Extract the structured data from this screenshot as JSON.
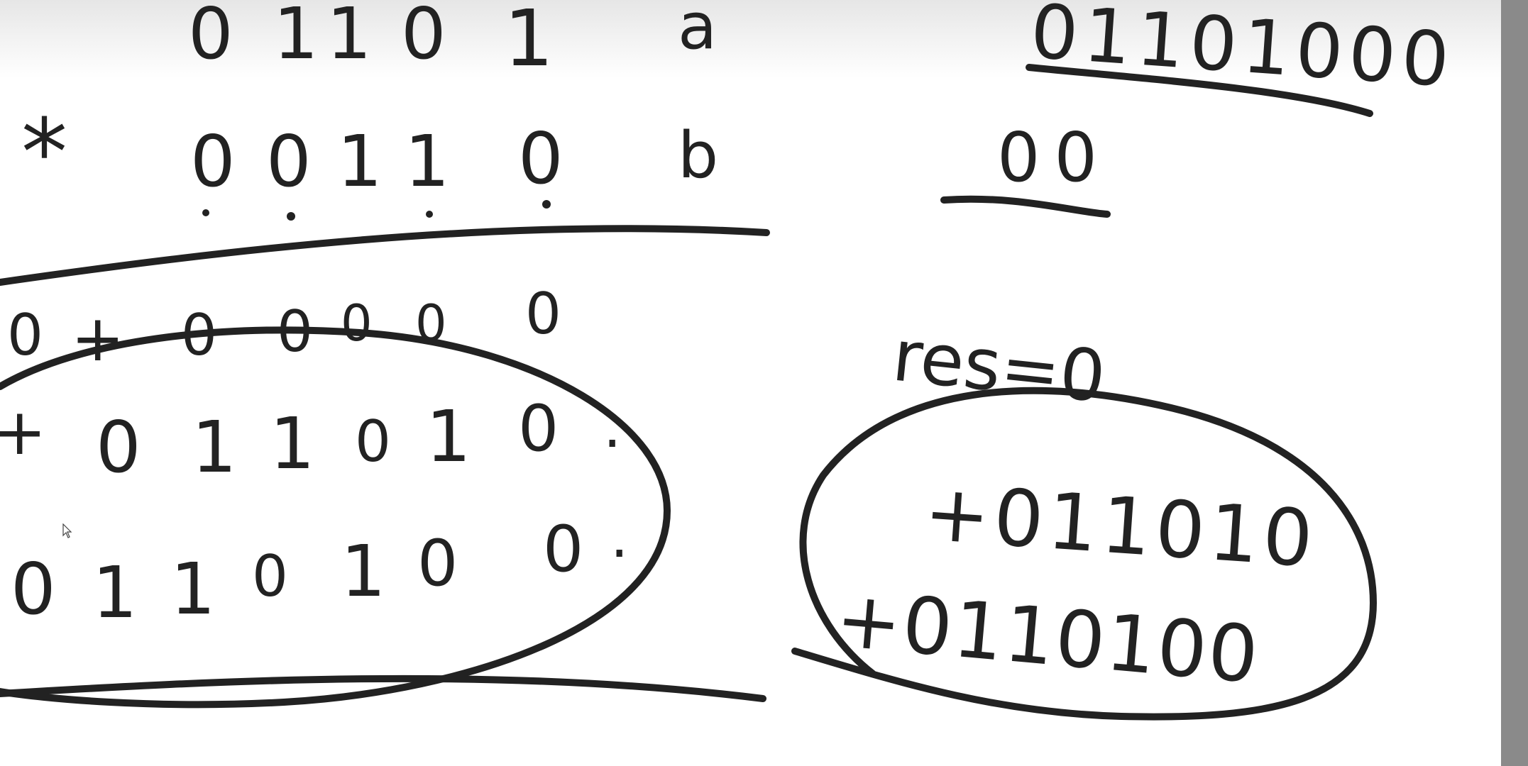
{
  "canvas": {
    "ink_color": "#222222",
    "background": "#ffffff",
    "scrollbar_color": "#8a8a8a"
  },
  "left_work": {
    "row_a": {
      "digits": [
        "0",
        "1",
        "1",
        "0",
        "1"
      ],
      "label": "a"
    },
    "row_b": {
      "operator": "*",
      "digits": [
        "0",
        "0",
        "1",
        "1",
        "0"
      ],
      "label": "b"
    },
    "partial_1": {
      "digits": [
        "0",
        "+",
        "0",
        "0",
        "0",
        "0",
        "0"
      ]
    },
    "partial_2": {
      "digits": [
        "+",
        "0",
        "1",
        "1",
        "0",
        "1",
        "0",
        "."
      ]
    },
    "result": {
      "digits": [
        "0",
        "1",
        "1",
        "0",
        "1",
        "0",
        "0",
        "."
      ]
    }
  },
  "right_work": {
    "shifted_a": "01101000",
    "shifted_b": "00",
    "res_label": "res=0",
    "sum_line_1": "+011010",
    "sum_line_2": "+0110100"
  },
  "icons": [
    "mouse-pointer-icon"
  ]
}
